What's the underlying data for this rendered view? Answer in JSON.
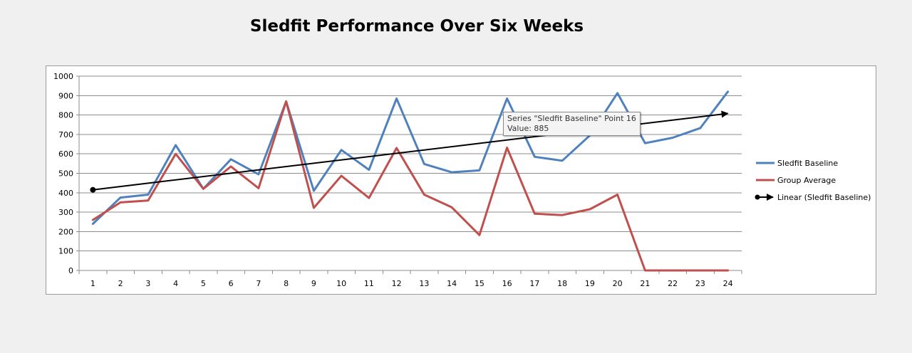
{
  "chart_data": {
    "type": "line",
    "title": "Sledfit Performance Over Six Weeks",
    "categories": [
      "1",
      "2",
      "3",
      "4",
      "5",
      "6",
      "7",
      "8",
      "9",
      "10",
      "11",
      "12",
      "13",
      "14",
      "15",
      "16",
      "17",
      "18",
      "19",
      "20",
      "21",
      "22",
      "23",
      "24"
    ],
    "ylim": [
      0,
      1000
    ],
    "yticks": [
      "0",
      "100",
      "200",
      "300",
      "400",
      "500",
      "600",
      "700",
      "800",
      "900",
      "1000"
    ],
    "grid": true,
    "legend_position": "right",
    "series": [
      {
        "name": "Sledfit Baseline",
        "color": "#4f81bd",
        "values": [
          240,
          375,
          390,
          645,
          420,
          572,
          495,
          870,
          410,
          620,
          518,
          885,
          548,
          505,
          515,
          885,
          585,
          565,
          695,
          913,
          655,
          683,
          733,
          920
        ]
      },
      {
        "name": "Group Average",
        "color": "#c0504d",
        "values": [
          260,
          350,
          360,
          600,
          420,
          535,
          423,
          870,
          322,
          487,
          373,
          630,
          390,
          325,
          182,
          632,
          292,
          285,
          315,
          390,
          0,
          0,
          0,
          0
        ]
      }
    ],
    "trendline": {
      "name": "Linear (Sledfit Baseline)",
      "color": "#000000",
      "start": 415,
      "end": 808
    },
    "tooltip": {
      "line1": "Series \"Sledfit Baseline\" Point 16",
      "line2": "Value: 885"
    }
  }
}
